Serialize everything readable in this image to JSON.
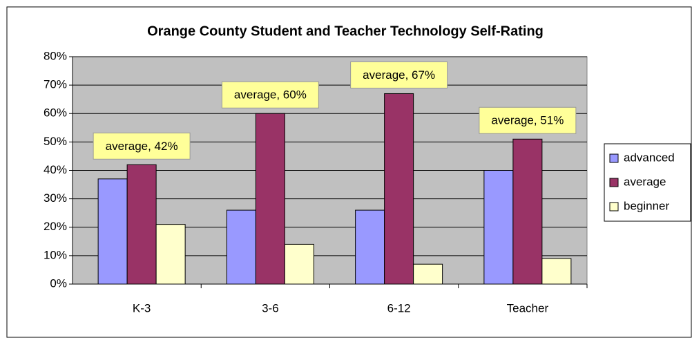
{
  "chart_data": {
    "type": "bar",
    "title": "Orange County Student and Teacher Technology Self-Rating",
    "categories": [
      "K-3",
      "3-6",
      "6-12",
      "Teacher"
    ],
    "series": [
      {
        "name": "advanced",
        "color": "#9999ff",
        "values": [
          37,
          26,
          26,
          40
        ]
      },
      {
        "name": "average",
        "color": "#993366",
        "values": [
          42,
          60,
          67,
          51
        ],
        "value_labels": [
          "average, 42%",
          "average, 60%",
          "average, 67%",
          "average, 51%"
        ]
      },
      {
        "name": "beginner",
        "color": "#ffffcc",
        "values": [
          21,
          14,
          7,
          9
        ]
      }
    ],
    "ylim": [
      0,
      80
    ],
    "yticks": [
      {
        "value": 0,
        "label": "0%"
      },
      {
        "value": 10,
        "label": "10%"
      },
      {
        "value": 20,
        "label": "20%"
      },
      {
        "value": 30,
        "label": "30%"
      },
      {
        "value": 40,
        "label": "40%"
      },
      {
        "value": 50,
        "label": "50%"
      },
      {
        "value": 60,
        "label": "60%"
      },
      {
        "value": 70,
        "label": "70%"
      },
      {
        "value": 80,
        "label": "80%"
      }
    ],
    "grid": true,
    "legend": "right",
    "plot_background": "#c0c0c0"
  }
}
